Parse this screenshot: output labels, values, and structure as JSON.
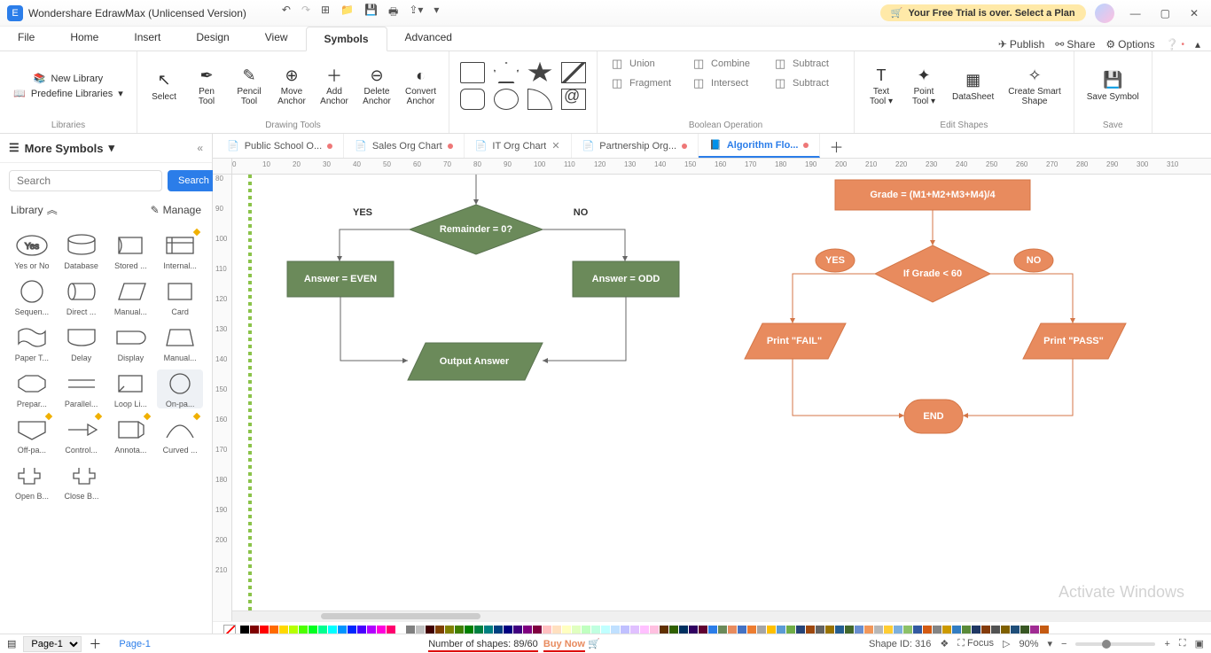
{
  "app": {
    "title": "Wondershare EdrawMax (Unlicensed Version)",
    "trial": "Your Free Trial is over. Select a Plan"
  },
  "menu": {
    "tabs": [
      "File",
      "Home",
      "Insert",
      "Design",
      "View",
      "Symbols",
      "Advanced"
    ],
    "active": 5,
    "right": {
      "publish": "Publish",
      "share": "Share",
      "options": "Options"
    }
  },
  "ribbon": {
    "libraries": {
      "new": "New Library",
      "predef": "Predefine Libraries",
      "label": "Libraries"
    },
    "draw": {
      "label": "Drawing Tools",
      "items": [
        {
          "t": "Select"
        },
        {
          "t": "Pen\nTool"
        },
        {
          "t": "Pencil\nTool"
        },
        {
          "t": "Move\nAnchor"
        },
        {
          "t": "Add\nAnchor"
        },
        {
          "t": "Delete\nAnchor"
        },
        {
          "t": "Convert\nAnchor"
        }
      ]
    },
    "bool": {
      "label": "Boolean Operation",
      "items": [
        "Union",
        "Combine",
        "Subtract",
        "Fragment",
        "Intersect",
        "Subtract"
      ]
    },
    "edit": {
      "label": "Edit Shapes",
      "items": [
        {
          "t": "Text\nTool"
        },
        {
          "t": "Point\nTool"
        },
        {
          "t": "DataSheet"
        },
        {
          "t": "Create Smart\nShape"
        }
      ]
    },
    "save": {
      "label": "Save",
      "item": "Save\nSymbol"
    }
  },
  "left": {
    "head": "More Symbols",
    "search_ph": "Search",
    "search_btn": "Search",
    "library": "Library",
    "manage": "Manage",
    "shapes": [
      [
        "Yes or No",
        "Database",
        "Stored ...",
        "Internal..."
      ],
      [
        "Sequen...",
        "Direct ...",
        "Manual...",
        "Card"
      ],
      [
        "Paper T...",
        "Delay",
        "Display",
        "Manual..."
      ],
      [
        "Prepar...",
        "Parallel...",
        "Loop Li...",
        "On-pa..."
      ],
      [
        "Off-pa...",
        "Control...",
        "Annota...",
        "Curved ..."
      ],
      [
        "Open B...",
        "Close B...",
        "",
        ""
      ]
    ],
    "selected": [
      3,
      3
    ]
  },
  "doctabs": [
    {
      "name": "Public School O...",
      "dirty": true
    },
    {
      "name": "Sales Org Chart",
      "dirty": true
    },
    {
      "name": "IT Org Chart",
      "dirty": false,
      "closable": true
    },
    {
      "name": "Partnership Org...",
      "dirty": true
    },
    {
      "name": "Algorithm Flo...",
      "dirty": true,
      "active": true
    }
  ],
  "ruler_h": [
    0,
    10,
    20,
    30,
    40,
    50,
    60,
    70,
    80,
    90,
    100,
    110,
    120,
    130,
    140,
    150,
    160,
    170,
    180,
    190,
    200,
    210,
    220,
    230,
    240,
    250,
    260,
    270,
    280,
    290,
    300,
    310
  ],
  "ruler_v": [
    80,
    90,
    100,
    110,
    120,
    130,
    140,
    150,
    160,
    170,
    180,
    190,
    200,
    210
  ],
  "flowchart": {
    "green": {
      "decision": "Remainder = 0?",
      "yes": "YES",
      "no": "NO",
      "even": "Answer = EVEN",
      "odd": "Answer = ODD",
      "out": "Output Answer",
      "color": "#6b8a5a"
    },
    "orange": {
      "calc": "Grade = (M1+M2+M3+M4)/4",
      "dec": "If Grade < 60",
      "yes": "YES",
      "no": "NO",
      "fail": "Print \"FAIL\"",
      "pass": "Print \"PASS\"",
      "end": "END",
      "color": "#e88b5e"
    }
  },
  "colors": [
    "#000000",
    "#7f0000",
    "#ff0000",
    "#ff6a00",
    "#ffd800",
    "#b6ff00",
    "#4cff00",
    "#00ff21",
    "#00ff90",
    "#00ffff",
    "#0094ff",
    "#0026ff",
    "#4800ff",
    "#b200ff",
    "#ff00dc",
    "#ff006e",
    "#ffffff",
    "#808080",
    "#c0c0c0",
    "#400000",
    "#804000",
    "#808000",
    "#408000",
    "#008000",
    "#008040",
    "#008080",
    "#004080",
    "#000080",
    "#400080",
    "#800080",
    "#800040",
    "#ffc0c0",
    "#ffe0c0",
    "#ffffc0",
    "#e0ffc0",
    "#c0ffc0",
    "#c0ffe0",
    "#c0ffff",
    "#c0e0ff",
    "#c0c0ff",
    "#e0c0ff",
    "#ffc0ff",
    "#ffc0e0",
    "#603000",
    "#306000",
    "#003060",
    "#300060",
    "#600030",
    "#2b7de9",
    "#6b8a5a",
    "#e88b5e",
    "#4472c4",
    "#ed7d31",
    "#a5a5a5",
    "#ffc000",
    "#5b9bd5",
    "#70ad47",
    "#264478",
    "#9e480e",
    "#636363",
    "#997300",
    "#255e91",
    "#43682b",
    "#698ed0",
    "#f1975a",
    "#b7b7b7",
    "#ffcd33",
    "#7cafdd",
    "#8cc168",
    "#335aa1",
    "#d35b13",
    "#848484",
    "#cc9a00",
    "#327dc2",
    "#5a8a39",
    "#203864",
    "#843c0c",
    "#525252",
    "#7f6000",
    "#1f4e79",
    "#385723",
    "#a02b93",
    "#c55a11"
  ],
  "status": {
    "page": "Page-1",
    "pagetab": "Page-1",
    "shapes_lbl": "Number of shapes:",
    "shapes": "89/60",
    "buy": "Buy Now",
    "shapeid_lbl": "Shape ID:",
    "shapeid": "316",
    "focus": "Focus",
    "zoom": "90%"
  },
  "watermark": "Activate Windows"
}
